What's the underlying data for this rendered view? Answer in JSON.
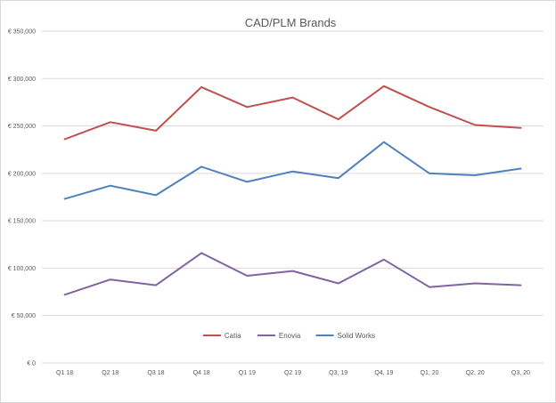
{
  "chart_data": {
    "type": "line",
    "title": "CAD/PLM Brands",
    "xlabel": "",
    "ylabel": "",
    "categories": [
      "Q1 18",
      "Q2 18",
      "Q3 18",
      "Q4 18",
      "Q1 19",
      "Q2 19",
      "Q3, 19",
      "Q4, 19",
      "Q1, 20",
      "Q2, 20",
      "Q3, 20"
    ],
    "yticks": [
      "€ 0",
      "€ 50,000",
      "€ 100,000",
      "€ 150,000",
      "€ 200,000",
      "€ 250,000",
      "€ 300,000",
      "€ 350,000"
    ],
    "ylim": [
      0,
      350000
    ],
    "grid": true,
    "legend_position": "bottom",
    "series": [
      {
        "name": "Catia",
        "color": "#c0504d",
        "values": [
          236000,
          254000,
          245000,
          291000,
          270000,
          280000,
          257000,
          292000,
          270000,
          251000,
          248000
        ]
      },
      {
        "name": "Enovia",
        "color": "#8064a2",
        "values": [
          72000,
          88000,
          82000,
          116000,
          92000,
          97000,
          84000,
          109000,
          80000,
          84000,
          82000
        ]
      },
      {
        "name": "Solid Works",
        "color": "#4f81bd",
        "values": [
          173000,
          187000,
          177000,
          207000,
          191000,
          202000,
          195000,
          233000,
          200000,
          198000,
          205000
        ]
      }
    ]
  }
}
